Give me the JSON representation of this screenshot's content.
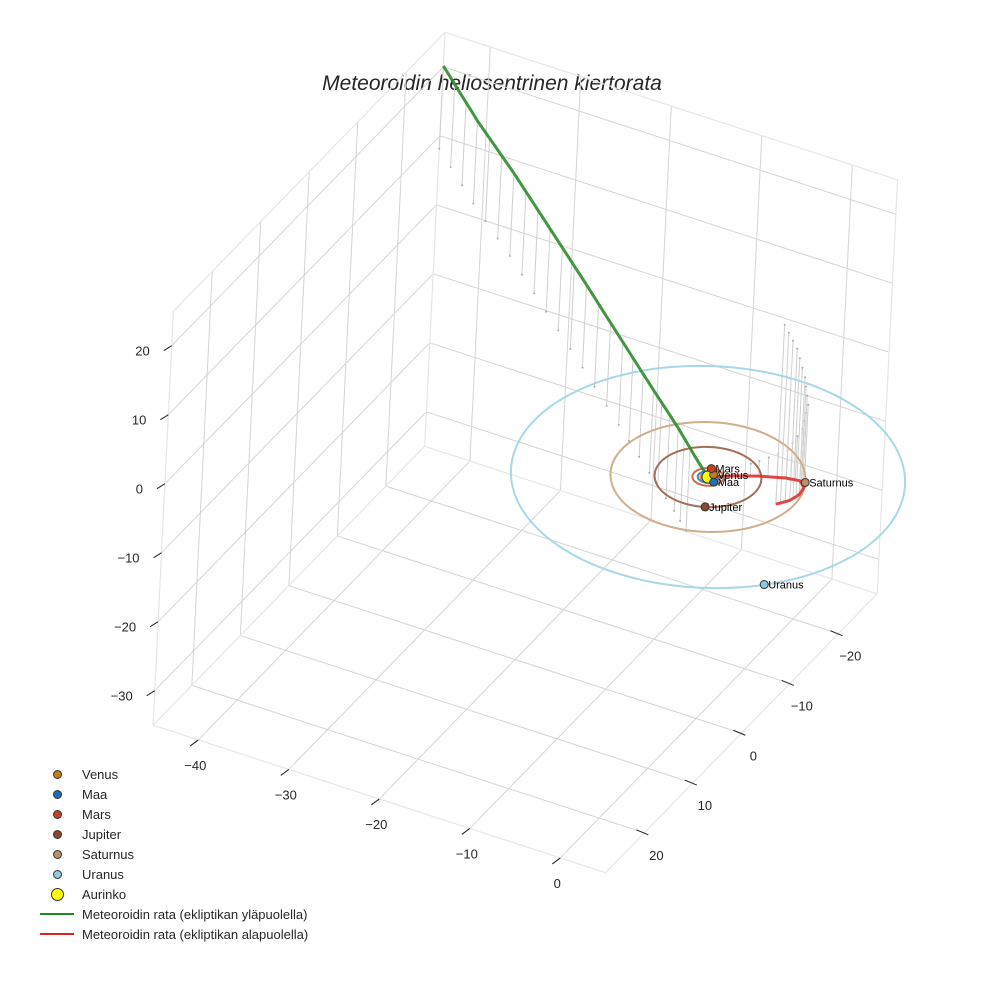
{
  "chart_data": {
    "type": "line3d",
    "title": "Meteoroidin heliosentrinen kiertorata",
    "xlabel": "",
    "ylabel": "",
    "zlabel": "",
    "x_ticks": [
      -40,
      -30,
      -20,
      -10,
      0
    ],
    "y_ticks": [
      -20,
      -10,
      0,
      10,
      20
    ],
    "z_ticks": [
      20,
      10,
      0,
      -10,
      -20,
      -30
    ],
    "xlim": [
      -45,
      5
    ],
    "ylim": [
      -28,
      28
    ],
    "zlim": [
      -35,
      25
    ],
    "grid": true,
    "legend_position": "lower left",
    "planets": [
      {
        "name": "Venus",
        "color": "#c27a1a",
        "a": 0.72,
        "x": 0.3,
        "y": -0.6
      },
      {
        "name": "Maa",
        "color": "#1f6fb4",
        "a": 1.0,
        "x": 0.9,
        "y": 0.5
      },
      {
        "name": "Mars",
        "color": "#c8401c",
        "a": 1.52,
        "x": -0.4,
        "y": -1.45
      },
      {
        "name": "Jupiter",
        "color": "#8b4a2b",
        "a": 5.2,
        "x": 2.2,
        "y": 4.7
      },
      {
        "name": "Saturnus",
        "color": "#b8906a",
        "a": 9.5,
        "x": 8.6,
        "y": -4.0
      },
      {
        "name": "Uranus",
        "color": "#8ecae0",
        "a": 19.2,
        "x": 13.5,
        "y": 13.6
      }
    ],
    "sun": {
      "name": "Aurinko",
      "color": "#ffff00",
      "x": 0,
      "y": 0,
      "z": 0
    },
    "orbit_colors": {
      "Venus": "#c98a3c",
      "Maa": "#3a86c4",
      "Mars": "#d06a4a",
      "Jupiter": "#a0705a",
      "Saturnus": "#cfae8c",
      "Uranus": "#a8d8e8"
    },
    "series": [
      {
        "name": "Meteoroidin rata (ekliptikan yläpuolella)",
        "color": "#2e8b2e",
        "points": [
          [
            -44,
            -26,
            22
          ],
          [
            -38,
            -22,
            19.5
          ],
          [
            -32,
            -18.5,
            17
          ],
          [
            -26,
            -15,
            14
          ],
          [
            -20,
            -11.5,
            11
          ],
          [
            -14,
            -8,
            7.8
          ],
          [
            -9,
            -5.2,
            5
          ],
          [
            -5,
            -3,
            2.8
          ],
          [
            -2,
            -1.2,
            1
          ],
          [
            0,
            0,
            0
          ]
        ]
      },
      {
        "name": "Meteoroidin rata (ekliptikan alapuolella)",
        "color": "#e03030",
        "points": [
          [
            0,
            0,
            0
          ],
          [
            1.5,
            -2.5,
            -1
          ],
          [
            3,
            -5,
            -2.2
          ],
          [
            4.5,
            -8,
            -4
          ],
          [
            4,
            -12,
            -7.5
          ],
          [
            2.5,
            -16,
            -12
          ],
          [
            0,
            -20,
            -17
          ],
          [
            -3,
            -24,
            -22
          ],
          [
            -6,
            -27,
            -26
          ]
        ]
      }
    ]
  },
  "legend": {
    "items": [
      {
        "label": "Venus",
        "type": "marker",
        "color": "#c27a1a",
        "size": 9
      },
      {
        "label": "Maa",
        "type": "marker",
        "color": "#1f6fb4",
        "size": 9
      },
      {
        "label": "Mars",
        "type": "marker",
        "color": "#c8401c",
        "size": 9
      },
      {
        "label": "Jupiter",
        "type": "marker",
        "color": "#8b4a2b",
        "size": 9
      },
      {
        "label": "Saturnus",
        "type": "marker",
        "color": "#b8906a",
        "size": 9
      },
      {
        "label": "Uranus",
        "type": "marker",
        "color": "#8ecae0",
        "size": 9
      },
      {
        "label": "Aurinko",
        "type": "marker",
        "color": "#ffff00",
        "size": 13
      },
      {
        "label": "Meteoroidin rata (ekliptikan yläpuolella)",
        "type": "line",
        "color": "#1f8a1f"
      },
      {
        "label": "Meteoroidin rata (ekliptikan alapuolella)",
        "type": "line",
        "color": "#e02020"
      }
    ]
  }
}
